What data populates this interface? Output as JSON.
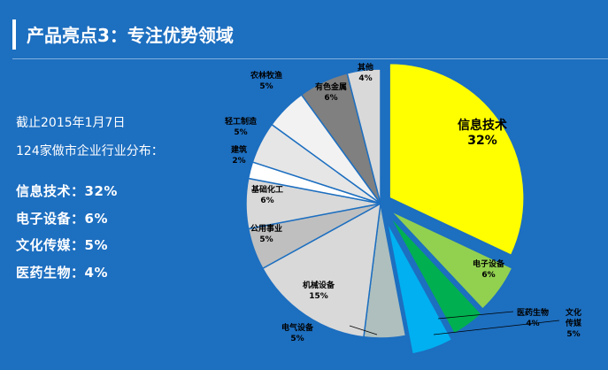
{
  "header": {
    "title": "产品亮点3：专注优势领域"
  },
  "info": {
    "date_line": "截止2015年1月7日",
    "subtitle_line": "124家做市企业行业分布：",
    "highlights": [
      "信息技术：32%",
      "电子设备：6%",
      "文化传媒：5%",
      "医药生物：4%"
    ]
  },
  "chart_data": {
    "type": "pie",
    "start_angle_deg": 0,
    "slices": [
      {
        "label": "信息技术",
        "value": 32,
        "pct_text": "32%",
        "color": "#ffff00",
        "exploded": true
      },
      {
        "label": "电子设备",
        "value": 6,
        "pct_text": "6%",
        "color": "#92d050",
        "exploded": true
      },
      {
        "label": "医药生物",
        "value": 4,
        "pct_text": "4%",
        "color": "#00b050",
        "exploded": true
      },
      {
        "label": "文化传媒",
        "value": 5,
        "pct_text": "5%",
        "color": "#00b0f0",
        "exploded": true
      },
      {
        "label": "电气设备",
        "value": 5,
        "pct_text": "5%",
        "color": "#aebfbe",
        "exploded": false
      },
      {
        "label": "机械设备",
        "value": 15,
        "pct_text": "15%",
        "color": "#d9d9d9",
        "exploded": false
      },
      {
        "label": "公用事业",
        "value": 5,
        "pct_text": "5%",
        "color": "#bfbfbf",
        "exploded": false
      },
      {
        "label": "基础化工",
        "value": 6,
        "pct_text": "6%",
        "color": "#d9d9d9",
        "exploded": false
      },
      {
        "label": "建筑",
        "value": 2,
        "pct_text": "2%",
        "color": "#ffffff",
        "exploded": false
      },
      {
        "label": "轻工制造",
        "value": 5,
        "pct_text": "5%",
        "color": "#e6e6e6",
        "exploded": false
      },
      {
        "label": "农林牧渔",
        "value": 5,
        "pct_text": "5%",
        "color": "#f2f2f2",
        "exploded": false
      },
      {
        "label": "有色金属",
        "value": 6,
        "pct_text": "6%",
        "color": "#808080",
        "exploded": false
      },
      {
        "label": "其他",
        "value": 4,
        "pct_text": "4%",
        "color": "#d9d9d9",
        "exploded": false
      }
    ]
  }
}
